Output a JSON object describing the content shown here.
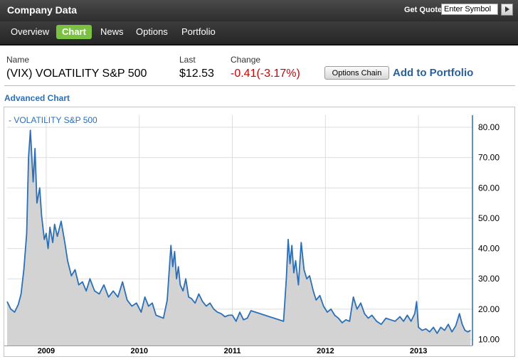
{
  "topbar": {
    "title": "Company Data",
    "get_quote_label": "Get Quote",
    "symbol_placeholder": "Enter Symbol"
  },
  "tabs": [
    {
      "label": "Overview",
      "active": false
    },
    {
      "label": "Chart",
      "active": true
    },
    {
      "label": "News",
      "active": false
    },
    {
      "label": "Options",
      "active": false
    },
    {
      "label": "Portfolio",
      "active": false
    }
  ],
  "quote": {
    "name_label": "Name",
    "name_value": "(VIX) VOLATILITY S&P 500",
    "last_label": "Last",
    "last_value": "$12.53",
    "change_label": "Change",
    "change_value": "-0.41(-3.17%)",
    "options_chain_label": "Options Chain",
    "add_to_portfolio_label": "Add to Portfolio"
  },
  "advanced_chart_label": "Advanced Chart",
  "colors": {
    "accent_tab": "#7cc242",
    "line": "#2a6fb7",
    "area": "#d3d3d3",
    "negative": "#cc0000"
  },
  "chart_data": {
    "type": "area",
    "title": "",
    "xlabel": "",
    "ylabel": "",
    "legend": "top-left",
    "grid": true,
    "ylim": [
      8,
      84
    ],
    "yticks": [
      "80.00",
      "70.00",
      "60.00",
      "50.00",
      "40.00",
      "30.00",
      "20.00",
      "10.00"
    ],
    "xticks": [
      "2009",
      "2010",
      "2011",
      "2012",
      "2013"
    ],
    "series": [
      {
        "name": "VOLATILITY S&P 500",
        "x": [
          2008.58,
          2008.62,
          2008.66,
          2008.7,
          2008.73,
          2008.76,
          2008.79,
          2008.81,
          2008.83,
          2008.86,
          2008.88,
          2008.9,
          2008.93,
          2008.95,
          2008.98,
          2009.0,
          2009.02,
          2009.04,
          2009.07,
          2009.09,
          2009.12,
          2009.16,
          2009.2,
          2009.23,
          2009.27,
          2009.31,
          2009.35,
          2009.39,
          2009.43,
          2009.47,
          2009.52,
          2009.57,
          2009.62,
          2009.67,
          2009.72,
          2009.77,
          2009.82,
          2009.87,
          2009.92,
          2009.97,
          2010.02,
          2010.06,
          2010.1,
          2010.14,
          2010.18,
          2010.22,
          2010.26,
          2010.3,
          2010.34,
          2010.36,
          2010.38,
          2010.4,
          2010.42,
          2010.44,
          2010.47,
          2010.5,
          2010.53,
          2010.56,
          2010.6,
          2010.64,
          2010.68,
          2010.72,
          2010.76,
          2010.8,
          2010.84,
          2010.88,
          2010.92,
          2010.96,
          2011.0,
          2011.04,
          2011.08,
          2011.12,
          2011.16,
          2011.2,
          2011.55,
          2011.58,
          2011.6,
          2011.62,
          2011.64,
          2011.66,
          2011.68,
          2011.71,
          2011.74,
          2011.77,
          2011.8,
          2011.83,
          2011.87,
          2011.9,
          2011.94,
          2011.98,
          2012.02,
          2012.06,
          2012.1,
          2012.14,
          2012.18,
          2012.22,
          2012.26,
          2012.3,
          2012.34,
          2012.38,
          2012.42,
          2012.46,
          2012.5,
          2012.55,
          2012.6,
          2012.65,
          2012.7,
          2012.75,
          2012.8,
          2012.84,
          2012.88,
          2012.92,
          2012.96,
          2012.98,
          2013.0,
          2013.04,
          2013.08,
          2013.12,
          2013.16,
          2013.2,
          2013.24,
          2013.28,
          2013.32,
          2013.36,
          2013.4,
          2013.44,
          2013.47,
          2013.5,
          2013.53,
          2013.56
        ],
        "values": [
          22.5,
          20.0,
          19.0,
          21.5,
          25.0,
          33.0,
          45.0,
          70.0,
          79.0,
          62.0,
          73.0,
          55.0,
          60.0,
          51.0,
          43.0,
          45.0,
          40.0,
          47.0,
          42.0,
          48.0,
          44.0,
          49.0,
          42.0,
          36.0,
          31.0,
          33.0,
          28.0,
          29.0,
          26.0,
          30.0,
          26.0,
          25.0,
          28.0,
          24.0,
          26.0,
          24.0,
          29.0,
          23.0,
          21.0,
          22.0,
          19.0,
          24.0,
          21.0,
          22.0,
          18.0,
          17.5,
          17.0,
          23.0,
          41.0,
          34.0,
          39.0,
          30.0,
          34.0,
          28.0,
          26.0,
          30.0,
          24.0,
          23.5,
          22.0,
          25.0,
          22.5,
          21.0,
          22.0,
          20.0,
          19.0,
          18.5,
          17.5,
          18.0,
          18.0,
          16.0,
          19.0,
          16.5,
          17.0,
          19.5,
          16.0,
          30.0,
          43.0,
          35.0,
          41.0,
          32.0,
          36.0,
          28.0,
          42.0,
          33.0,
          30.0,
          31.0,
          26.0,
          23.0,
          24.5,
          21.0,
          19.0,
          20.0,
          18.0,
          17.0,
          15.5,
          16.5,
          16.0,
          24.0,
          20.0,
          22.0,
          18.5,
          17.0,
          18.0,
          16.0,
          15.0,
          17.0,
          16.5,
          16.0,
          17.5,
          16.0,
          18.0,
          16.0,
          18.5,
          22.5,
          14.0,
          13.0,
          13.5,
          12.5,
          14.0,
          12.0,
          14.0,
          13.0,
          15.0,
          12.5,
          14.5,
          18.5,
          15.0,
          13.0,
          12.5,
          13.0
        ]
      }
    ]
  }
}
